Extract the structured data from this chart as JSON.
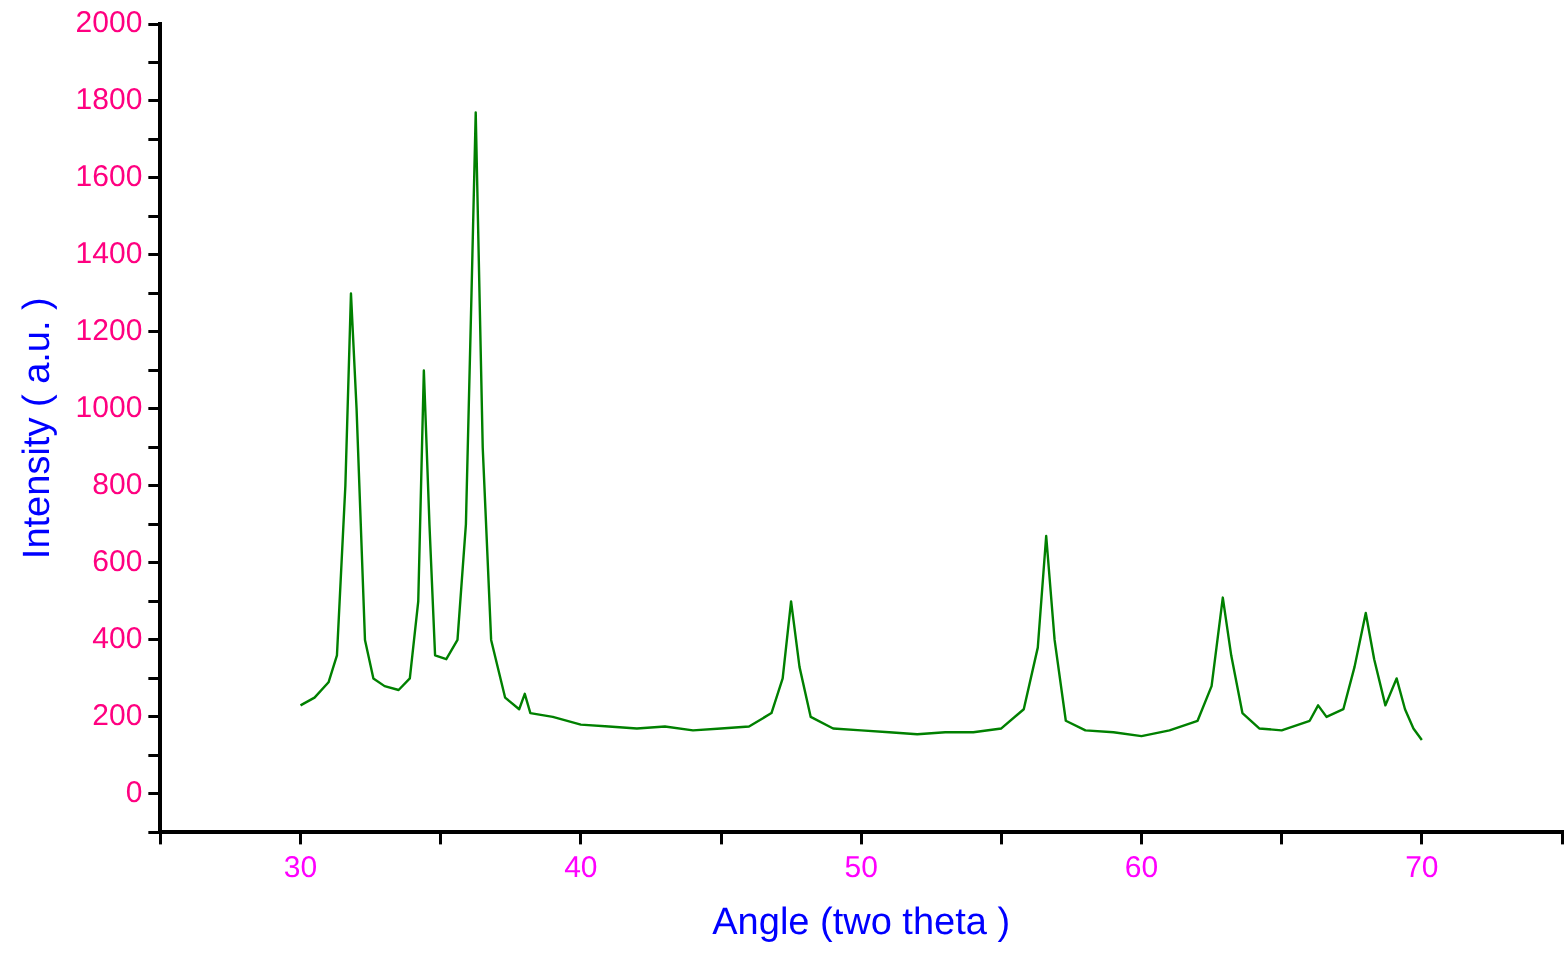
{
  "chart_data": {
    "type": "line",
    "xlabel": "Angle (two theta )",
    "ylabel": "Intensity ( a.u. )",
    "xlim": [
      25,
      75
    ],
    "ylim": [
      -100,
      2000
    ],
    "xticks": [
      {
        "value": 25,
        "label": null
      },
      30,
      {
        "value": 35,
        "label": null
      },
      40,
      {
        "value": 45,
        "label": null
      },
      50,
      {
        "value": 55,
        "label": null
      },
      60,
      {
        "value": 65,
        "label": null
      },
      70,
      {
        "value": 75,
        "label": null
      }
    ],
    "yticks": [
      {
        "value": -100,
        "label": null
      },
      0,
      {
        "value": 100,
        "label": null
      },
      200,
      {
        "value": 300,
        "label": null
      },
      400,
      {
        "value": 500,
        "label": null
      },
      600,
      {
        "value": 700,
        "label": null
      },
      800,
      {
        "value": 900,
        "label": null
      },
      1000,
      {
        "value": 1100,
        "label": null
      },
      1200,
      {
        "value": 1300,
        "label": null
      },
      1400,
      {
        "value": 1500,
        "label": null
      },
      1600,
      {
        "value": 1700,
        "label": null
      },
      1800,
      {
        "value": 1900,
        "label": null
      },
      2000
    ],
    "grid": false,
    "legend": false,
    "marker": "none",
    "line_style": "solid",
    "series": [
      {
        "color": "#008000",
        "x": [
          30.0,
          30.5,
          31.0,
          31.3,
          31.6,
          31.8,
          32.0,
          32.3,
          32.6,
          33.0,
          33.5,
          33.9,
          34.2,
          34.4,
          34.6,
          34.8,
          35.2,
          35.6,
          35.9,
          36.1,
          36.25,
          36.5,
          36.8,
          37.3,
          37.8,
          38.0,
          38.2,
          39,
          40,
          41,
          42,
          43,
          44,
          45,
          46,
          46.8,
          47.2,
          47.5,
          47.8,
          48.2,
          49,
          50,
          51,
          52,
          53,
          54,
          55,
          55.8,
          56.3,
          56.6,
          56.9,
          57.3,
          58,
          59,
          60,
          61,
          62,
          62.5,
          62.9,
          63.2,
          63.6,
          64.2,
          65,
          66,
          66.3,
          66.6,
          67.2,
          67.6,
          68.0,
          68.3,
          68.7,
          69.1,
          69.4,
          69.7,
          70
        ],
        "values": [
          230,
          250,
          290,
          360,
          800,
          1300,
          1000,
          400,
          300,
          280,
          270,
          300,
          500,
          1100,
          700,
          360,
          350,
          400,
          700,
          1300,
          1770,
          900,
          400,
          250,
          220,
          260,
          210,
          200,
          180,
          175,
          170,
          175,
          165,
          170,
          175,
          210,
          300,
          500,
          330,
          200,
          170,
          165,
          160,
          155,
          160,
          160,
          170,
          220,
          380,
          670,
          400,
          190,
          165,
          160,
          150,
          165,
          190,
          280,
          510,
          360,
          210,
          170,
          165,
          190,
          230,
          200,
          220,
          330,
          470,
          350,
          230,
          300,
          220,
          170,
          140
        ]
      }
    ]
  }
}
